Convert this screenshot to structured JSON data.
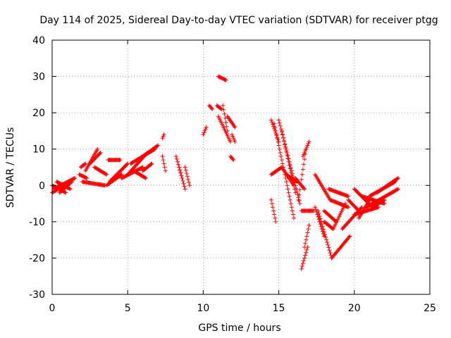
{
  "chart_data": {
    "type": "scatter",
    "title": "Day 114 of 2025, Sidereal Day-to-day VTEC variation (SDTVAR) for receiver ptgg",
    "xlabel": "GPS time / hours",
    "ylabel": "SDTVAR / TECUs",
    "xlim": [
      0,
      25
    ],
    "ylim": [
      -30,
      40
    ],
    "x_ticks": [
      0,
      5,
      10,
      15,
      20,
      25
    ],
    "y_ticks": [
      -30,
      -20,
      -10,
      0,
      10,
      20,
      30,
      40
    ],
    "grid": true,
    "legend": "none",
    "marker": "plus",
    "series_color": "#ff0000",
    "segments": [
      {
        "x0": 0.0,
        "x1": 0.9,
        "y0": 0,
        "y1": -2
      },
      {
        "x0": 0.0,
        "x1": 0.8,
        "y0": -2,
        "y1": 0
      },
      {
        "x0": 0.1,
        "x1": 1.5,
        "y0": -1,
        "y1": 2
      },
      {
        "x0": 0.3,
        "x1": 1.2,
        "y0": 1,
        "y1": -1
      },
      {
        "x0": 0.5,
        "x1": 1.3,
        "y0": -2,
        "y1": 1
      },
      {
        "x0": 1.8,
        "x1": 2.3,
        "y0": 3,
        "y1": 2
      },
      {
        "x0": 1.9,
        "x1": 2.2,
        "y0": 5,
        "y1": 6
      },
      {
        "x0": 2.2,
        "x1": 3.0,
        "y0": 4,
        "y1": 10
      },
      {
        "x0": 2.5,
        "x1": 3.2,
        "y0": 6,
        "y1": 9
      },
      {
        "x0": 2.0,
        "x1": 3.5,
        "y0": 1,
        "y1": 0
      },
      {
        "x0": 2.8,
        "x1": 3.6,
        "y0": 5,
        "y1": 3
      },
      {
        "x0": 3.6,
        "x1": 4.6,
        "y0": 0,
        "y1": 3
      },
      {
        "x0": 3.7,
        "x1": 4.5,
        "y0": 7,
        "y1": 7
      },
      {
        "x0": 3.8,
        "x1": 5.0,
        "y0": 1,
        "y1": 6
      },
      {
        "x0": 4.6,
        "x1": 6.0,
        "y0": 2,
        "y1": 5
      },
      {
        "x0": 5.0,
        "x1": 6.3,
        "y0": 3,
        "y1": 9
      },
      {
        "x0": 5.2,
        "x1": 6.8,
        "y0": 6,
        "y1": 10
      },
      {
        "x0": 5.4,
        "x1": 6.2,
        "y0": 4,
        "y1": 2
      },
      {
        "x0": 6.0,
        "x1": 6.6,
        "y0": 4,
        "y1": 6
      },
      {
        "x0": 6.0,
        "x1": 7.0,
        "y0": 8,
        "y1": 11
      },
      {
        "x0": 7.3,
        "x1": 7.5,
        "y0": 8,
        "y1": 4
      },
      {
        "x0": 7.3,
        "x1": 7.4,
        "y0": 13,
        "y1": 14
      },
      {
        "x0": 8.2,
        "x1": 8.6,
        "y0": 8,
        "y1": 2
      },
      {
        "x0": 8.4,
        "x1": 8.8,
        "y0": 5,
        "y1": -1
      },
      {
        "x0": 8.8,
        "x1": 9.1,
        "y0": 5,
        "y1": 0
      },
      {
        "x0": 10.0,
        "x1": 10.2,
        "y0": 14,
        "y1": 16
      },
      {
        "x0": 10.4,
        "x1": 10.6,
        "y0": 22,
        "y1": 21
      },
      {
        "x0": 10.9,
        "x1": 11.2,
        "y0": 22,
        "y1": 21
      },
      {
        "x0": 11.0,
        "x1": 11.5,
        "y0": 30,
        "y1": 29
      },
      {
        "x0": 11.0,
        "x1": 11.8,
        "y0": 19,
        "y1": 12
      },
      {
        "x0": 11.3,
        "x1": 11.6,
        "y0": 22,
        "y1": 15
      },
      {
        "x0": 11.6,
        "x1": 12.1,
        "y0": 19,
        "y1": 16
      },
      {
        "x0": 11.9,
        "x1": 12.1,
        "y0": 14,
        "y1": 12
      },
      {
        "x0": 11.8,
        "x1": 12.0,
        "y0": 8,
        "y1": 7
      },
      {
        "x0": 14.5,
        "x1": 14.8,
        "y0": -4,
        "y1": -10
      },
      {
        "x0": 14.5,
        "x1": 15.2,
        "y0": 3,
        "y1": 5
      },
      {
        "x0": 14.5,
        "x1": 15.0,
        "y0": 18,
        "y1": 12
      },
      {
        "x0": 14.7,
        "x1": 16.0,
        "y0": 17,
        "y1": -9
      },
      {
        "x0": 15.0,
        "x1": 16.4,
        "y0": 18,
        "y1": -5
      },
      {
        "x0": 15.2,
        "x1": 16.1,
        "y0": 15,
        "y1": -2
      },
      {
        "x0": 15.2,
        "x1": 16.0,
        "y0": 5,
        "y1": 0
      },
      {
        "x0": 15.5,
        "x1": 16.2,
        "y0": 3,
        "y1": 1
      },
      {
        "x0": 16.1,
        "x1": 16.7,
        "y0": 2,
        "y1": -1
      },
      {
        "x0": 16.5,
        "x1": 16.9,
        "y0": -23,
        "y1": -17
      },
      {
        "x0": 16.7,
        "x1": 17.0,
        "y0": -17,
        "y1": -11
      },
      {
        "x0": 16.3,
        "x1": 16.8,
        "y0": -4,
        "y1": 10
      },
      {
        "x0": 16.6,
        "x1": 17.0,
        "y0": 8,
        "y1": 12
      },
      {
        "x0": 16.5,
        "x1": 17.3,
        "y0": -7,
        "y1": -7
      },
      {
        "x0": 17.4,
        "x1": 18.0,
        "y0": -6,
        "y1": -14
      },
      {
        "x0": 17.6,
        "x1": 18.5,
        "y0": -7,
        "y1": -20
      },
      {
        "x0": 18.5,
        "x1": 19.7,
        "y0": -20,
        "y1": -14
      },
      {
        "x0": 17.4,
        "x1": 18.4,
        "y0": 3,
        "y1": -4
      },
      {
        "x0": 18.4,
        "x1": 19.6,
        "y0": -4,
        "y1": -6
      },
      {
        "x0": 18.0,
        "x1": 18.8,
        "y0": -7,
        "y1": -10
      },
      {
        "x0": 18.0,
        "x1": 18.6,
        "y0": -10,
        "y1": -12
      },
      {
        "x0": 18.6,
        "x1": 19.4,
        "y0": -12,
        "y1": -5
      },
      {
        "x0": 18.3,
        "x1": 19.6,
        "y0": -1,
        "y1": -3
      },
      {
        "x0": 19.2,
        "x1": 20.5,
        "y0": -12,
        "y1": -6
      },
      {
        "x0": 19.6,
        "x1": 20.3,
        "y0": -4,
        "y1": -7
      },
      {
        "x0": 20.0,
        "x1": 21.2,
        "y0": -1,
        "y1": -6
      },
      {
        "x0": 20.0,
        "x1": 21.6,
        "y0": -8,
        "y1": -6
      },
      {
        "x0": 20.3,
        "x1": 21.0,
        "y0": -9,
        "y1": -4
      },
      {
        "x0": 20.5,
        "x1": 22.0,
        "y0": -3,
        "y1": -5
      },
      {
        "x0": 20.8,
        "x1": 22.9,
        "y0": -6,
        "y1": -1
      },
      {
        "x0": 21.0,
        "x1": 22.7,
        "y0": -3,
        "y1": 1
      },
      {
        "x0": 21.5,
        "x1": 22.9,
        "y0": -2,
        "y1": 2
      },
      {
        "x0": 21.2,
        "x1": 22.0,
        "y0": -6,
        "y1": -4
      }
    ]
  }
}
